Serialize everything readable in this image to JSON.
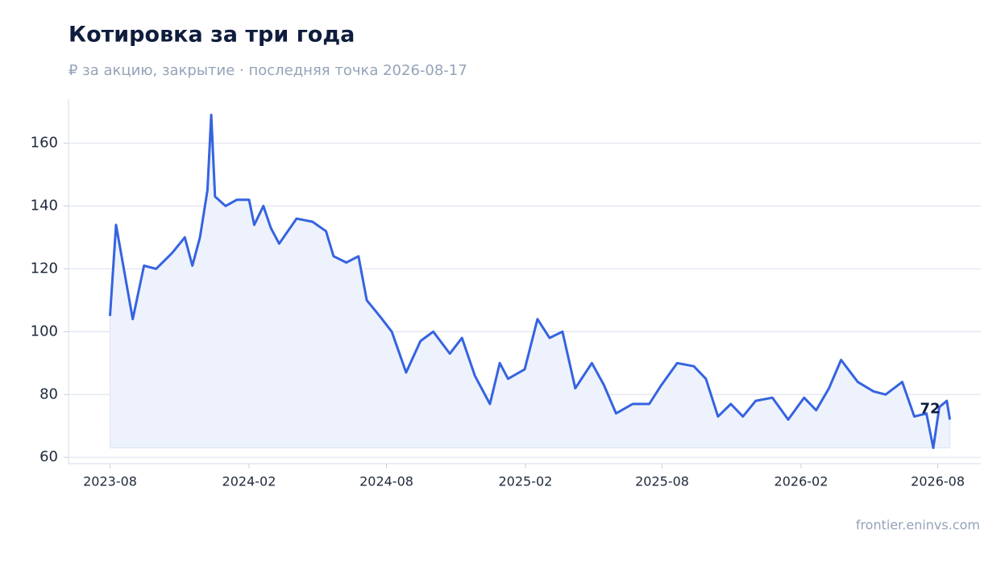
{
  "chart_data": {
    "type": "area-line",
    "title": "Котировка за три года",
    "subtitle": "₽ за акцию, закрытие · последняя точка 2026-08-17",
    "source": "frontier.eninvs.com",
    "x": [
      "2023-08-01",
      "2023-08-09",
      "2023-08-31",
      "2023-09-15",
      "2023-10-01",
      "2023-10-22",
      "2023-11-08",
      "2023-11-18",
      "2023-11-28",
      "2023-12-08",
      "2023-12-13",
      "2023-12-18",
      "2024-01-01",
      "2024-01-16",
      "2024-02-01",
      "2024-02-08",
      "2024-02-20",
      "2024-03-01",
      "2024-03-12",
      "2024-04-04",
      "2024-04-25",
      "2024-05-13",
      "2024-05-23",
      "2024-06-09",
      "2024-06-25",
      "2024-07-06",
      "2024-07-23",
      "2024-08-08",
      "2024-08-27",
      "2024-09-15",
      "2024-10-02",
      "2024-10-24",
      "2024-11-09",
      "2024-11-26",
      "2024-12-16",
      "2024-12-29",
      "2025-01-09",
      "2025-01-31",
      "2025-02-17",
      "2025-03-05",
      "2025-03-22",
      "2025-04-08",
      "2025-04-30",
      "2025-05-16",
      "2025-06-01",
      "2025-06-23",
      "2025-07-15",
      "2025-07-31",
      "2025-08-21",
      "2025-09-12",
      "2025-09-28",
      "2025-10-14",
      "2025-10-31",
      "2025-11-16",
      "2025-12-03",
      "2025-12-25",
      "2026-01-15",
      "2026-02-05",
      "2026-02-21",
      "2026-03-10",
      "2026-03-26",
      "2026-04-17",
      "2026-05-08",
      "2026-05-24",
      "2026-06-15",
      "2026-07-01",
      "2026-07-17",
      "2026-07-26",
      "2026-08-03",
      "2026-08-13",
      "2026-08-17"
    ],
    "series": [
      {
        "name": "Котировка",
        "color": "#3563e0",
        "fill": "#eef2fc",
        "values": [
          105,
          134,
          104,
          121,
          120,
          125,
          130,
          121,
          130,
          145,
          169,
          143,
          140,
          142,
          142,
          134,
          140,
          133,
          128,
          136,
          135,
          132,
          124,
          122,
          124,
          110,
          105,
          100,
          87,
          97,
          100,
          93,
          98,
          86,
          77,
          90,
          85,
          88,
          104,
          98,
          100,
          82,
          90,
          83,
          74,
          77,
          77,
          83,
          90,
          89,
          85,
          73,
          77,
          73,
          78,
          79,
          72,
          79,
          75,
          82,
          91,
          84,
          81,
          80,
          84,
          73,
          74,
          63,
          76,
          78,
          72
        ]
      }
    ],
    "xlim": [
      "2023-06-07",
      "2026-09-27"
    ],
    "xticks": [
      "2023-08",
      "2024-02",
      "2024-08",
      "2025-02",
      "2025-08",
      "2026-02",
      "2026-08"
    ],
    "ylim": [
      58,
      174
    ],
    "yticks": [
      60,
      80,
      100,
      120,
      140,
      160
    ],
    "grid": true
  }
}
